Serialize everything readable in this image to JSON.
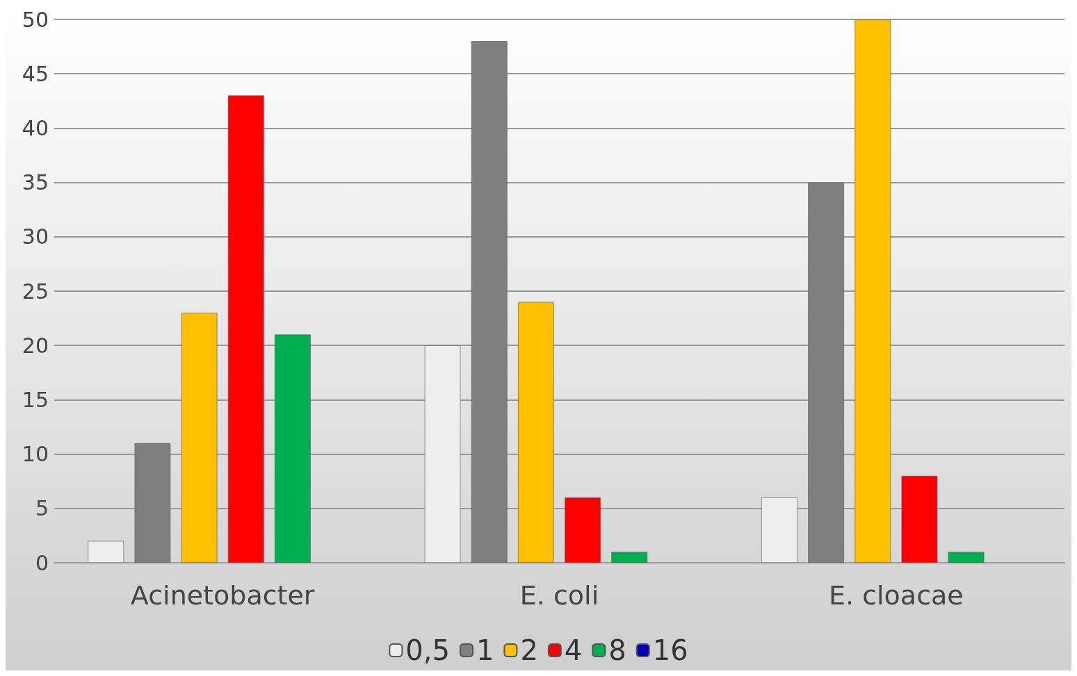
{
  "chart_data": {
    "type": "bar",
    "categories": [
      "Acinetobacter",
      "E. coli",
      "E. cloacae"
    ],
    "series": [
      {
        "name": "0,5",
        "color": "#eeeeee",
        "values": [
          2,
          20,
          6
        ]
      },
      {
        "name": "1",
        "color": "#7f7f7f",
        "values": [
          11,
          48,
          35
        ]
      },
      {
        "name": "2",
        "color": "#ffc000",
        "values": [
          23,
          24,
          50
        ]
      },
      {
        "name": "4",
        "color": "#ff0000",
        "values": [
          43,
          6,
          8
        ]
      },
      {
        "name": "8",
        "color": "#00b050",
        "values": [
          21,
          1,
          1
        ]
      },
      {
        "name": "16",
        "color": "#0000c0",
        "values": [
          null,
          null,
          null
        ]
      }
    ],
    "ylim": [
      0,
      50
    ],
    "yticks": [
      0,
      5,
      10,
      15,
      20,
      25,
      30,
      35,
      40,
      45,
      50
    ],
    "grid": "y",
    "legend": "bottom"
  }
}
